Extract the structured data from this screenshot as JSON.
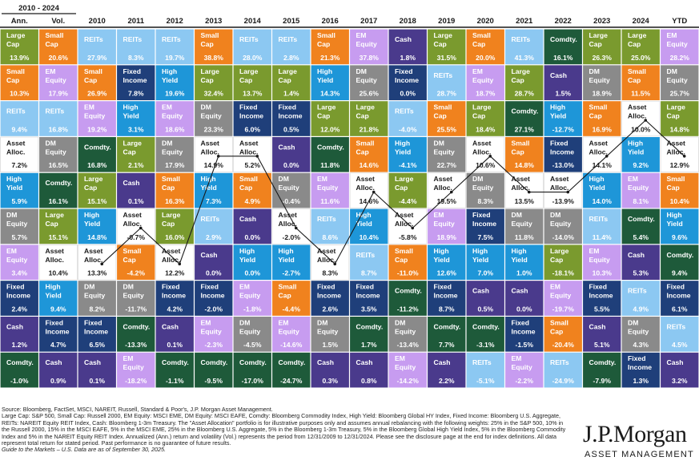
{
  "chart_data": {
    "type": "table",
    "period_header": "2010 - 2024",
    "columns": [
      {
        "header": "Ann.",
        "cells": [
          {
            "label": "Large Cap",
            "value": "13.9%"
          },
          {
            "label": "Small Cap",
            "value": "10.3%"
          },
          {
            "label": "REITs",
            "value": "9.4%"
          },
          {
            "label": "Asset Alloc.",
            "value": "7.2%"
          },
          {
            "label": "High Yield",
            "value": "5.9%"
          },
          {
            "label": "DM Equity",
            "value": "5.7%"
          },
          {
            "label": "EM Equity",
            "value": "3.4%"
          },
          {
            "label": "Fixed Income",
            "value": "2.4%"
          },
          {
            "label": "Cash",
            "value": "1.2%"
          },
          {
            "label": "Comdty.",
            "value": "-1.0%"
          }
        ]
      },
      {
        "header": "Vol.",
        "cells": [
          {
            "label": "Small Cap",
            "value": "20.6%"
          },
          {
            "label": "EM Equity",
            "value": "17.9%"
          },
          {
            "label": "REITs",
            "value": "16.8%"
          },
          {
            "label": "DM Equity",
            "value": "16.5%"
          },
          {
            "label": "Comdty.",
            "value": "16.1%"
          },
          {
            "label": "Large Cap",
            "value": "15.1%"
          },
          {
            "label": "Asset Alloc.",
            "value": "10.4%"
          },
          {
            "label": "High Yield",
            "value": "9.4%"
          },
          {
            "label": "Fixed Income",
            "value": "4.7%"
          },
          {
            "label": "Cash",
            "value": "0.9%"
          }
        ]
      },
      {
        "header": "2010",
        "cells": [
          {
            "label": "REITs",
            "value": "27.9%"
          },
          {
            "label": "Small Cap",
            "value": "26.9%"
          },
          {
            "label": "EM Equity",
            "value": "19.2%"
          },
          {
            "label": "Comdty.",
            "value": "16.8%"
          },
          {
            "label": "Large Cap",
            "value": "15.1%"
          },
          {
            "label": "High Yield",
            "value": "14.8%"
          },
          {
            "label": "Asset Alloc.",
            "value": "13.3%"
          },
          {
            "label": "DM Equity",
            "value": "8.2%"
          },
          {
            "label": "Fixed Income",
            "value": "6.5%"
          },
          {
            "label": "Cash",
            "value": "0.1%"
          }
        ]
      },
      {
        "header": "2011",
        "cells": [
          {
            "label": "REITs",
            "value": "8.3%"
          },
          {
            "label": "Fixed Income",
            "value": "7.8%"
          },
          {
            "label": "High Yield",
            "value": "3.1%"
          },
          {
            "label": "Large Cap",
            "value": "2.1%"
          },
          {
            "label": "Cash",
            "value": "0.1%"
          },
          {
            "label": "Asset Alloc.",
            "value": "-0.7%"
          },
          {
            "label": "Small Cap",
            "value": "-4.2%"
          },
          {
            "label": "DM Equity",
            "value": "-11.7%"
          },
          {
            "label": "Comdty.",
            "value": "-13.3%"
          },
          {
            "label": "EM Equity",
            "value": "-18.2%"
          }
        ]
      },
      {
        "header": "2012",
        "cells": [
          {
            "label": "REITs",
            "value": "19.7%"
          },
          {
            "label": "High Yield",
            "value": "19.6%"
          },
          {
            "label": "EM Equity",
            "value": "18.6%"
          },
          {
            "label": "DM Equity",
            "value": "17.9%"
          },
          {
            "label": "Small Cap",
            "value": "16.3%"
          },
          {
            "label": "Large Cap",
            "value": "16.0%"
          },
          {
            "label": "Asset Alloc.",
            "value": "12.2%"
          },
          {
            "label": "Fixed Income",
            "value": "4.2%"
          },
          {
            "label": "Cash",
            "value": "0.1%"
          },
          {
            "label": "Comdty.",
            "value": "-1.1%"
          }
        ]
      },
      {
        "header": "2013",
        "cells": [
          {
            "label": "Small Cap",
            "value": "38.8%"
          },
          {
            "label": "Large Cap",
            "value": "32.4%"
          },
          {
            "label": "DM Equity",
            "value": "23.3%"
          },
          {
            "label": "Asset Alloc.",
            "value": "14.9%"
          },
          {
            "label": "High Yield",
            "value": "7.3%"
          },
          {
            "label": "REITs",
            "value": "2.9%"
          },
          {
            "label": "Cash",
            "value": "0.0%"
          },
          {
            "label": "Fixed Income",
            "value": "-2.0%"
          },
          {
            "label": "EM Equity",
            "value": "-2.3%"
          },
          {
            "label": "Comdty.",
            "value": "-9.5%"
          }
        ]
      },
      {
        "header": "2014",
        "cells": [
          {
            "label": "REITs",
            "value": "28.0%"
          },
          {
            "label": "Large Cap",
            "value": "13.7%"
          },
          {
            "label": "Fixed Income",
            "value": "6.0%"
          },
          {
            "label": "Asset Alloc.",
            "value": "5.2%"
          },
          {
            "label": "Small Cap",
            "value": "4.9%"
          },
          {
            "label": "Cash",
            "value": "0.0%"
          },
          {
            "label": "High Yield",
            "value": "0.0%"
          },
          {
            "label": "EM Equity",
            "value": "-1.8%"
          },
          {
            "label": "DM Equity",
            "value": "-4.5%"
          },
          {
            "label": "Comdty.",
            "value": "-17.0%"
          }
        ]
      },
      {
        "header": "2015",
        "cells": [
          {
            "label": "REITs",
            "value": "2.8%"
          },
          {
            "label": "Large Cap",
            "value": "1.4%"
          },
          {
            "label": "Fixed Income",
            "value": "0.5%"
          },
          {
            "label": "Cash",
            "value": "0.0%"
          },
          {
            "label": "DM Equity",
            "value": "-0.4%"
          },
          {
            "label": "Asset Alloc.",
            "value": "-2.0%"
          },
          {
            "label": "High Yield",
            "value": "-2.7%"
          },
          {
            "label": "Small Cap",
            "value": "-4.4%"
          },
          {
            "label": "EM Equity",
            "value": "-14.6%"
          },
          {
            "label": "Comdty.",
            "value": "-24.7%"
          }
        ]
      },
      {
        "header": "2016",
        "cells": [
          {
            "label": "Small Cap",
            "value": "21.3%"
          },
          {
            "label": "High Yield",
            "value": "14.3%"
          },
          {
            "label": "Large Cap",
            "value": "12.0%"
          },
          {
            "label": "Comdty.",
            "value": "11.8%"
          },
          {
            "label": "EM Equity",
            "value": "11.6%"
          },
          {
            "label": "REITs",
            "value": "8.6%"
          },
          {
            "label": "Asset Alloc.",
            "value": "8.3%"
          },
          {
            "label": "Fixed Income",
            "value": "2.6%"
          },
          {
            "label": "DM Equity",
            "value": "1.5%"
          },
          {
            "label": "Cash",
            "value": "0.3%"
          }
        ]
      },
      {
        "header": "2017",
        "cells": [
          {
            "label": "EM Equity",
            "value": "37.8%"
          },
          {
            "label": "DM Equity",
            "value": "25.6%"
          },
          {
            "label": "Large Cap",
            "value": "21.8%"
          },
          {
            "label": "Small Cap",
            "value": "14.6%"
          },
          {
            "label": "Asset Alloc.",
            "value": "14.6%"
          },
          {
            "label": "High Yield",
            "value": "10.4%"
          },
          {
            "label": "REITs",
            "value": "8.7%"
          },
          {
            "label": "Fixed Income",
            "value": "3.5%"
          },
          {
            "label": "Comdty.",
            "value": "1.7%"
          },
          {
            "label": "Cash",
            "value": "0.8%"
          }
        ]
      },
      {
        "header": "2018",
        "cells": [
          {
            "label": "Cash",
            "value": "1.8%"
          },
          {
            "label": "Fixed Income",
            "value": "0.0%"
          },
          {
            "label": "REITs",
            "value": "-4.0%"
          },
          {
            "label": "High Yield",
            "value": "-4.1%"
          },
          {
            "label": "Large Cap",
            "value": "-4.4%"
          },
          {
            "label": "Asset Alloc.",
            "value": "-5.8%"
          },
          {
            "label": "Small Cap",
            "value": "-11.0%"
          },
          {
            "label": "Comdty.",
            "value": "-11.2%"
          },
          {
            "label": "DM Equity",
            "value": "-13.4%"
          },
          {
            "label": "EM Equity",
            "value": "-14.2%"
          }
        ]
      },
      {
        "header": "2019",
        "cells": [
          {
            "label": "Large Cap",
            "value": "31.5%"
          },
          {
            "label": "REITs",
            "value": "28.7%"
          },
          {
            "label": "Small Cap",
            "value": "25.5%"
          },
          {
            "label": "DM Equity",
            "value": "22.7%"
          },
          {
            "label": "Asset Alloc.",
            "value": "19.5%"
          },
          {
            "label": "EM Equity",
            "value": "18.9%"
          },
          {
            "label": "High Yield",
            "value": "12.6%"
          },
          {
            "label": "Fixed Income",
            "value": "8.7%"
          },
          {
            "label": "Comdty.",
            "value": "7.7%"
          },
          {
            "label": "Cash",
            "value": "2.2%"
          }
        ]
      },
      {
        "header": "2020",
        "cells": [
          {
            "label": "Small Cap",
            "value": "20.0%"
          },
          {
            "label": "EM Equity",
            "value": "18.7%"
          },
          {
            "label": "Large Cap",
            "value": "18.4%"
          },
          {
            "label": "Asset Alloc.",
            "value": "10.6%"
          },
          {
            "label": "DM Equity",
            "value": "8.3%"
          },
          {
            "label": "Fixed Income",
            "value": "7.5%"
          },
          {
            "label": "High Yield",
            "value": "7.0%"
          },
          {
            "label": "Cash",
            "value": "0.5%"
          },
          {
            "label": "Comdty.",
            "value": "-3.1%"
          },
          {
            "label": "REITs",
            "value": "-5.1%"
          }
        ]
      },
      {
        "header": "2021",
        "cells": [
          {
            "label": "REITs",
            "value": "41.3%"
          },
          {
            "label": "Large Cap",
            "value": "28.7%"
          },
          {
            "label": "Comdty.",
            "value": "27.1%"
          },
          {
            "label": "Small Cap",
            "value": "14.8%"
          },
          {
            "label": "Asset Alloc.",
            "value": "13.5%"
          },
          {
            "label": "DM Equity",
            "value": "11.8%"
          },
          {
            "label": "High Yield",
            "value": "1.0%"
          },
          {
            "label": "Cash",
            "value": "0.0%"
          },
          {
            "label": "Fixed Income",
            "value": "-1.5%"
          },
          {
            "label": "EM Equity",
            "value": "-2.2%"
          }
        ]
      },
      {
        "header": "2022",
        "cells": [
          {
            "label": "Comdty.",
            "value": "16.1%"
          },
          {
            "label": "Cash",
            "value": "1.5%"
          },
          {
            "label": "High Yield",
            "value": "-12.7%"
          },
          {
            "label": "Fixed Income",
            "value": "-13.0%"
          },
          {
            "label": "Asset Alloc.",
            "value": "-13.9%"
          },
          {
            "label": "DM Equity",
            "value": "-14.0%"
          },
          {
            "label": "Large Cap",
            "value": "-18.1%"
          },
          {
            "label": "EM Equity",
            "value": "-19.7%"
          },
          {
            "label": "Small Cap",
            "value": "-20.4%"
          },
          {
            "label": "REITs",
            "value": "-24.9%"
          }
        ]
      },
      {
        "header": "2023",
        "cells": [
          {
            "label": "Large Cap",
            "value": "26.3%"
          },
          {
            "label": "DM Equity",
            "value": "18.9%"
          },
          {
            "label": "Small Cap",
            "value": "16.9%"
          },
          {
            "label": "Asset Alloc.",
            "value": "14.1%"
          },
          {
            "label": "High Yield",
            "value": "14.0%"
          },
          {
            "label": "REITs",
            "value": "11.4%"
          },
          {
            "label": "EM Equity",
            "value": "10.3%"
          },
          {
            "label": "Fixed Income",
            "value": "5.5%"
          },
          {
            "label": "Cash",
            "value": "5.1%"
          },
          {
            "label": "Comdty.",
            "value": "-7.9%"
          }
        ]
      },
      {
        "header": "2024",
        "cells": [
          {
            "label": "Large Cap",
            "value": "25.0%"
          },
          {
            "label": "Small Cap",
            "value": "11.5%"
          },
          {
            "label": "Asset Alloc.",
            "value": "10.0%"
          },
          {
            "label": "High Yield",
            "value": "9.2%"
          },
          {
            "label": "EM Equity",
            "value": "8.1%"
          },
          {
            "label": "Comdty.",
            "value": "5.4%"
          },
          {
            "label": "Cash",
            "value": "5.3%"
          },
          {
            "label": "REITs",
            "value": "4.9%"
          },
          {
            "label": "DM Equity",
            "value": "4.3%"
          },
          {
            "label": "Fixed Income",
            "value": "1.3%"
          }
        ]
      },
      {
        "header": "YTD",
        "cells": [
          {
            "label": "EM Equity",
            "value": "28.2%"
          },
          {
            "label": "DM Equity",
            "value": "25.7%"
          },
          {
            "label": "Large Cap",
            "value": "14.8%"
          },
          {
            "label": "Asset Alloc.",
            "value": "12.9%"
          },
          {
            "label": "Small Cap",
            "value": "10.4%"
          },
          {
            "label": "High Yield",
            "value": "9.6%"
          },
          {
            "label": "Comdty.",
            "value": "9.4%"
          },
          {
            "label": "Fixed Income",
            "value": "6.1%"
          },
          {
            "label": "REITs",
            "value": "4.5%"
          },
          {
            "label": "Cash",
            "value": "3.2%"
          }
        ]
      }
    ]
  },
  "asset_colors": {
    "Large Cap": "#7a9a2e",
    "Small Cap": "#f0821e",
    "EM Equity": "#c79cf0",
    "REITs": "#8cc8f2",
    "Asset Alloc.": "#ffffff",
    "High Yield": "#1e96d8",
    "DM Equity": "#8a8a8a",
    "Fixed Income": "#1f3f7a",
    "Cash": "#4a3a8c",
    "Comdty.": "#1e5a3a"
  },
  "asset_text_colors": {
    "Asset Alloc.": "#1a1a1a",
    "default": "#ffffff"
  },
  "footnote": {
    "lines": [
      "Source: Bloomberg, FactSet, MSCI, NAREIT, Russell, Standard & Poor's, J.P. Morgan Asset Management.",
      "Large Cap: S&P 500, Small Cap: Russell 2000, EM Equity: MSCI EME, DM Equity: MSCI EAFE, Comdty: Bloomberg Commodity Index, High Yield: Bloomberg Global HY Index, Fixed Income: Bloomberg U.S. Aggregate, REITs: NAREIT Equity REIT Index, Cash: Bloomberg 1-3m Treasury. The \"Asset Allocation\" portfolio is for illustrative purposes only and assumes annual rebalancing with the following weights: 25% in the S&P 500, 10% in the Russell 2000, 15% in the MSCI EAFE, 5% in the MSCI EME, 25% in the Bloomberg U.S. Aggregate, 5% in the Bloomberg 1-3m Treasury, 5% in the Bloomberg Global High Yield Index, 5% in the Bloomberg Commodity Index and 5% in the NAREIT Equity REIT Index. Annualized (Ann.) return and volatility (Vol.) represents the period from 12/31/2009 to 12/31/2024. Please see the disclosure page at the end for index definitions. All data represent total return for stated period. Past performance is no guarantee of future results."
    ],
    "guide": "Guide to the Markets – U.S. Data are as of September 30, 2025."
  },
  "logo": {
    "name": "J.P.Morgan",
    "subtitle": "ASSET MANAGEMENT"
  }
}
